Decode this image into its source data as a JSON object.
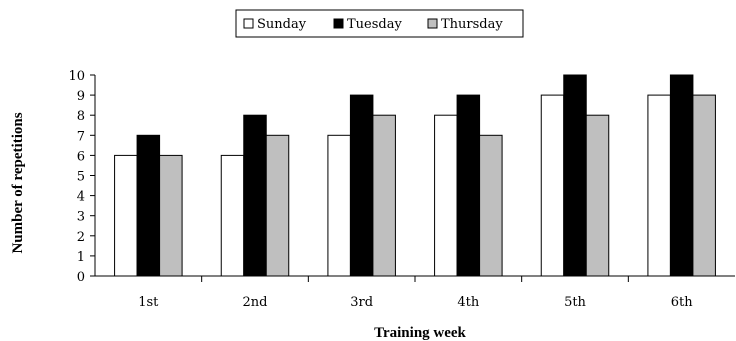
{
  "chart_data": {
    "type": "bar",
    "xlabel": "Training week",
    "ylabel": "Number of repetitions",
    "categories": [
      "1st",
      "2nd",
      "3rd",
      "4th",
      "5th",
      "6th"
    ],
    "ylim": [
      0,
      10
    ],
    "yticks": [
      0,
      1,
      2,
      3,
      4,
      5,
      6,
      7,
      8,
      9,
      10
    ],
    "grid": false,
    "legend_position": "top",
    "series": [
      {
        "name": "Sunday",
        "color": "#ffffff",
        "values": [
          6,
          6,
          7,
          8,
          9,
          9
        ]
      },
      {
        "name": "Tuesday",
        "color": "#000000",
        "values": [
          7,
          8,
          9,
          9,
          10,
          10
        ]
      },
      {
        "name": "Thursday",
        "color": "#bfbfbf",
        "values": [
          6,
          7,
          8,
          7,
          8,
          9
        ]
      }
    ]
  }
}
